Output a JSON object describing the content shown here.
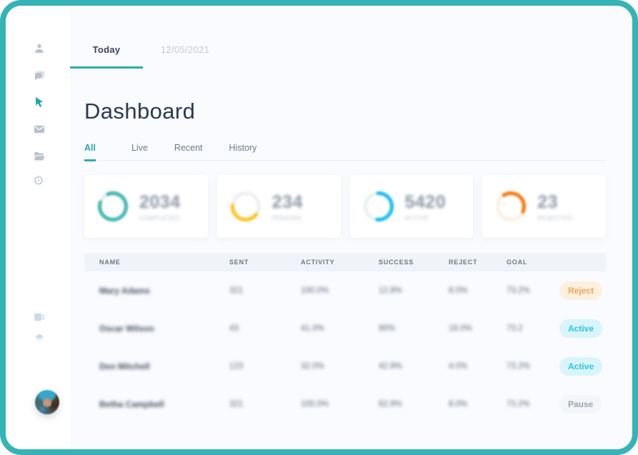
{
  "colors": {
    "frame_border": "#35B3B7",
    "accent_teal": "#2BAEA9",
    "sidebar_icon_gray": "#B9C2CC",
    "sidebar_icon_light_blue": "#CBD9E8",
    "title_text": "#2A3950",
    "main_background": "#FAFBFE"
  },
  "sidebar": {
    "icons": [
      "user-icon",
      "chat-icon",
      "cursor-icon",
      "mail-icon",
      "folder-icon",
      "gear-icon",
      "plugin-icon",
      "layers-icon"
    ],
    "active_icon": "cursor-icon"
  },
  "topbar": {
    "tabs": [
      {
        "label": "Today",
        "active": true
      },
      {
        "label": "12/05/2021",
        "active": false
      }
    ]
  },
  "header": {
    "title": "Dashboard"
  },
  "subtabs": [
    {
      "label": "All",
      "active": true
    },
    {
      "label": "Live",
      "active": false
    },
    {
      "label": "Recent",
      "active": false
    },
    {
      "label": "History",
      "active": false
    }
  ],
  "cards": [
    {
      "value": "2034",
      "label": "COMPLETED",
      "donut": {
        "color": "#4DBDB7",
        "track": "#E9EEF2",
        "percent": 86,
        "rotate": -110
      }
    },
    {
      "value": "234",
      "label": "PENDING",
      "donut": {
        "color": "#FFC82E",
        "track": "#F0F1F4",
        "percent": 40,
        "rotate": 40
      }
    },
    {
      "value": "5420",
      "label": "ACTIVE",
      "donut": {
        "color": "#27C1F2",
        "track": "#EAF3EF",
        "percent": 52,
        "rotate": -90
      }
    },
    {
      "value": "23",
      "label": "REJECTED",
      "donut": {
        "color": "#F8821F",
        "track": "#FBF2E4",
        "percent": 40,
        "rotate": -120
      }
    }
  ],
  "table": {
    "columns": [
      "NAME",
      "SENT",
      "ACTIVITY",
      "SUCCESS",
      "REJECT",
      "GOAL"
    ],
    "rows": [
      {
        "name": "Mary Adams",
        "sent": "321",
        "activity": "100.0%",
        "success": "12.9%",
        "reject": "8.0%",
        "goal": "73.2%",
        "status": "Reject",
        "status_type": "reject"
      },
      {
        "name": "Oscar Wilson",
        "sent": "43",
        "activity": "41.0%",
        "success": "90%",
        "reject": "18.0%",
        "goal": "73.2",
        "status": "Active",
        "status_type": "active"
      },
      {
        "name": "Den Mitchell",
        "sent": "123",
        "activity": "32.0%",
        "success": "42.9%",
        "reject": "4.0%",
        "goal": "73.2%",
        "status": "Active",
        "status_type": "active"
      },
      {
        "name": "Betha Campbell",
        "sent": "321",
        "activity": "100.0%",
        "success": "62.9%",
        "reject": "8.0%",
        "goal": "73.2%",
        "status": "Pause",
        "status_type": "pause"
      }
    ]
  },
  "badge_styles": {
    "reject": {
      "bg": "#FDF0DE",
      "fg": "#F4A259"
    },
    "active": {
      "bg": "#D9F5FC",
      "fg": "#2BC3E8"
    },
    "pause": {
      "bg": "#F3F5F7",
      "fg": "#9AA4B0"
    }
  }
}
